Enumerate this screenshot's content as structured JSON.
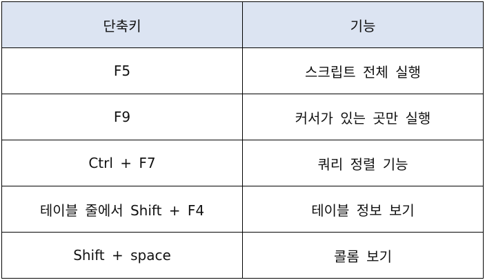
{
  "table": {
    "headers": [
      "단축키",
      "기능"
    ],
    "rows": [
      {
        "shortcut": "F5",
        "function": "스크립트 전체 실행"
      },
      {
        "shortcut": "F9",
        "function": "커서가 있는 곳만 실행"
      },
      {
        "shortcut": "Ctrl + F7",
        "function": "쿼리 정렬 기능"
      },
      {
        "shortcut": "테이블 줄에서 Shift + F4",
        "function": "테이블 정보 보기"
      },
      {
        "shortcut": "Shift + space",
        "function": "콜롬 보기"
      }
    ]
  },
  "colors": {
    "header_background": "#dce4f2",
    "border": "#000000"
  }
}
